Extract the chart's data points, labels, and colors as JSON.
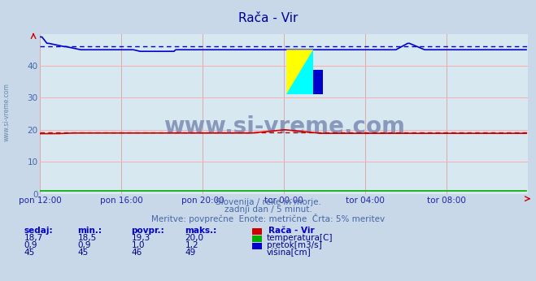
{
  "title": "Rača - Vir",
  "subtitle1": "Slovenija / reke in morje.",
  "subtitle2": "zadnji dan / 5 minut.",
  "subtitle3": "Meritve: povprečne  Enote: metrične  Črta: 5% meritev",
  "bg_color": "#c8d8e8",
  "plot_bg_color": "#d8e8f0",
  "grid_color_h": "#ffaaaa",
  "grid_color_v": "#ddaaaa",
  "xlabel_color": "#2222aa",
  "title_color": "#000099",
  "text_color": "#4466aa",
  "ylabel_color": "#4466aa",
  "xticklabels": [
    "pon 12:00",
    "pon 16:00",
    "pon 20:00",
    "tor 00:00",
    "tor 04:00",
    "tor 08:00"
  ],
  "yticks": [
    0,
    10,
    20,
    30,
    40
  ],
  "ylim": [
    0,
    50
  ],
  "xlim": [
    0,
    288
  ],
  "n_points": 288,
  "temp_color": "#cc0000",
  "flow_color": "#00aa00",
  "height_color": "#0000cc",
  "temp_avg": 19.3,
  "height_avg": 46.0,
  "watermark": "www.si-vreme.com",
  "watermark_color": "#8899bb",
  "legend_title": "Rača - Vir",
  "legend_items": [
    "temperatura[C]",
    "pretok[m3/s]",
    "višina[cm]"
  ],
  "legend_colors": [
    "#cc0000",
    "#00aa00",
    "#0000cc"
  ],
  "table_headers": [
    "sedaj:",
    "min.:",
    "povpr.:",
    "maks.:"
  ],
  "table_rows": [
    [
      "18,7",
      "18,5",
      "19,3",
      "20,0"
    ],
    [
      "0,9",
      "0,9",
      "1,0",
      "1,2"
    ],
    [
      "45",
      "45",
      "46",
      "49"
    ]
  ],
  "sidebar_label": "www.si-vreme.com",
  "sidebar_color": "#6688aa"
}
